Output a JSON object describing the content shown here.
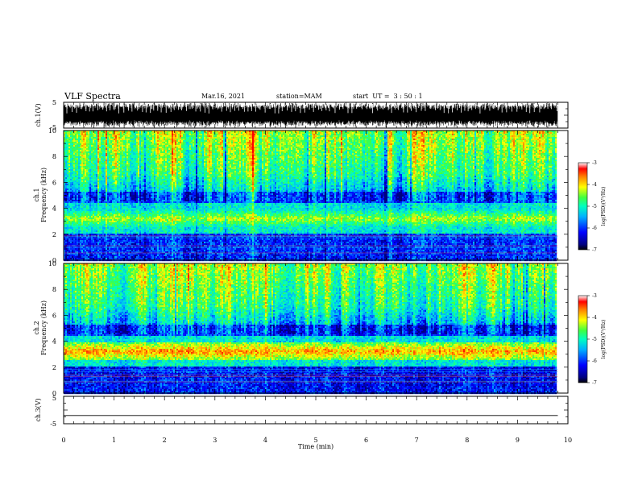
{
  "header": {
    "title": "VLF Spectra",
    "date": "Mar.16, 2021",
    "station": "station=MAM",
    "start": "start  UT =  3 : 50 : 1"
  },
  "chart_data": [
    {
      "type": "line",
      "name": "ch1-waveform",
      "ylabel": "ch.1(V)",
      "ylim": [
        -5,
        5
      ],
      "yticks": [
        "5",
        "-5"
      ]
    },
    {
      "type": "heatmap",
      "name": "ch1-spectrogram",
      "ylabel_top": "ch.1",
      "ylabel": "Frequency (kHz)",
      "ylim": [
        0,
        10
      ],
      "yticks": [
        "0",
        "2",
        "4",
        "6",
        "8",
        "10"
      ],
      "colorbar": {
        "label": "log(PSD)(V²/Hz)",
        "range": [
          -7,
          -3
        ],
        "ticks": [
          "-3",
          "-4",
          "-5",
          "-6",
          "-7"
        ]
      }
    },
    {
      "type": "heatmap",
      "name": "ch2-spectrogram",
      "ylabel_top": "ch.2",
      "ylabel": "Frequency (kHz)",
      "ylim": [
        0,
        10
      ],
      "yticks": [
        "0",
        "2",
        "4",
        "6",
        "8",
        "10"
      ],
      "colorbar": {
        "label": "log(PSD)(V²/Hz)",
        "range": [
          -7,
          -3
        ],
        "ticks": [
          "-3",
          "-4",
          "-5",
          "-6",
          "-7"
        ]
      }
    },
    {
      "type": "line",
      "name": "ch3-waveform",
      "ylabel": "ch.3(V)",
      "ylim": [
        -5,
        5
      ],
      "yticks": [
        "5",
        "-5"
      ],
      "x": [
        0,
        9.8
      ],
      "y": [
        -2,
        -2
      ]
    }
  ],
  "xaxis": {
    "label": "Time (min)",
    "xlim": [
      0,
      10
    ],
    "ticks": [
      "0",
      "1",
      "2",
      "3",
      "4",
      "5",
      "6",
      "7",
      "8",
      "9",
      "10"
    ]
  },
  "colors": {
    "colormap": [
      "#000080",
      "#0000ff",
      "#00b0ff",
      "#00ffc0",
      "#40ff40",
      "#ffff00",
      "#ff8000",
      "#ff0000",
      "#ffffff"
    ]
  }
}
